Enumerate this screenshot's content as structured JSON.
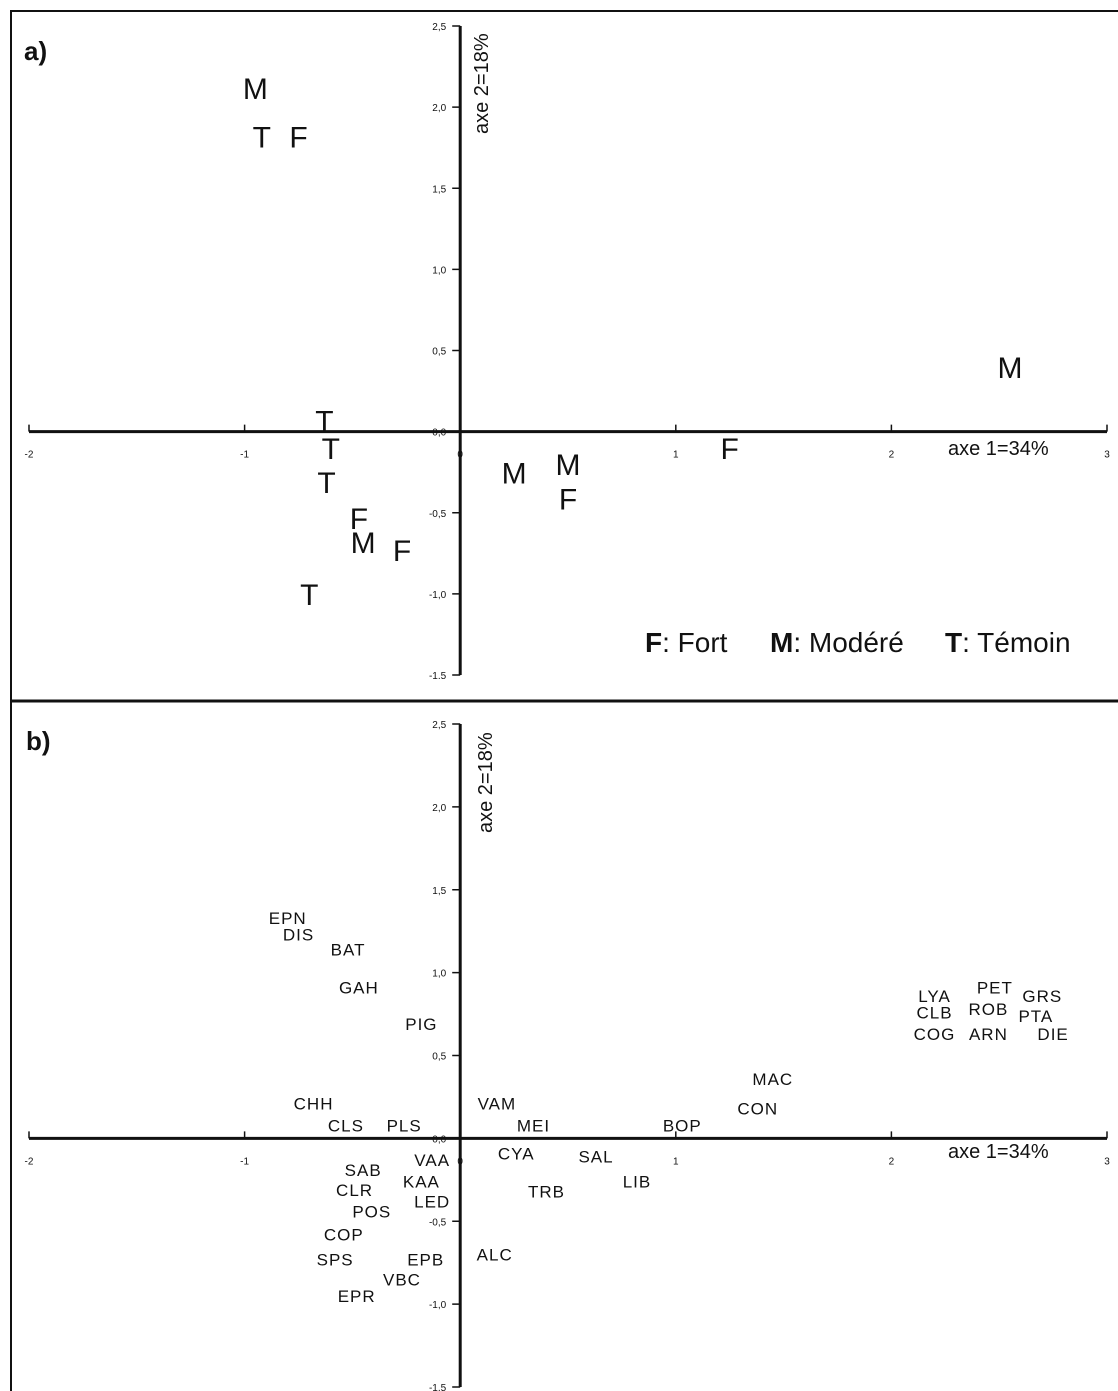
{
  "chart_data": [
    {
      "panel": "a)",
      "type": "scatter",
      "xlabel": "axe 1=34%",
      "ylabel": "axe 2=18%",
      "xlim": [
        -2,
        3
      ],
      "ylim": [
        -1.5,
        2.5
      ],
      "x_ticks": [
        "-2",
        "-1",
        "0",
        "1",
        "2",
        "3"
      ],
      "y_ticks": [
        "2,5",
        "2,0",
        "1,5",
        "1,0",
        "0,5",
        "0,0",
        "-0,5",
        "-1,0",
        "-1.5"
      ],
      "points": [
        {
          "label": "M",
          "x": -0.95,
          "y": 2.1
        },
        {
          "label": "T",
          "x": -0.92,
          "y": 1.8
        },
        {
          "label": "F",
          "x": -0.75,
          "y": 1.8
        },
        {
          "label": "M",
          "x": 2.55,
          "y": 0.38
        },
        {
          "label": "T",
          "x": -0.63,
          "y": 0.05
        },
        {
          "label": "T",
          "x": -0.6,
          "y": -0.12
        },
        {
          "label": "T",
          "x": -0.62,
          "y": -0.33
        },
        {
          "label": "F",
          "x": 1.25,
          "y": -0.12
        },
        {
          "label": "M",
          "x": 0.5,
          "y": -0.22
        },
        {
          "label": "M",
          "x": 0.25,
          "y": -0.27
        },
        {
          "label": "F",
          "x": 0.5,
          "y": -0.43
        },
        {
          "label": "F",
          "x": -0.47,
          "y": -0.55
        },
        {
          "label": "M",
          "x": -0.45,
          "y": -0.7
        },
        {
          "label": "F",
          "x": -0.27,
          "y": -0.75
        },
        {
          "label": "T",
          "x": -0.7,
          "y": -1.02
        }
      ],
      "legend": [
        {
          "key": "F",
          "text": ": Fort"
        },
        {
          "key": "M",
          "text": ": Modéré"
        },
        {
          "key": "T",
          "text": ": Témoin"
        }
      ]
    },
    {
      "panel": "b)",
      "type": "scatter",
      "xlabel": "axe 1=34%",
      "ylabel": "axe 2=18%",
      "xlim": [
        -2,
        3
      ],
      "ylim": [
        -1.5,
        2.5
      ],
      "x_ticks": [
        "-2",
        "-1",
        "0",
        "1",
        "2",
        "3"
      ],
      "y_ticks": [
        "2,5",
        "2,0",
        "1,5",
        "1,0",
        "0,5",
        "0,0",
        "-0,5",
        "-1,0",
        "-1,5"
      ],
      "points": [
        {
          "label": "EPN",
          "x": -0.8,
          "y": 1.32
        },
        {
          "label": "DIS",
          "x": -0.75,
          "y": 1.22
        },
        {
          "label": "BAT",
          "x": -0.52,
          "y": 1.13
        },
        {
          "label": "GAH",
          "x": -0.47,
          "y": 0.9
        },
        {
          "label": "PIG",
          "x": -0.18,
          "y": 0.68
        },
        {
          "label": "LYA",
          "x": 2.2,
          "y": 0.85
        },
        {
          "label": "PET",
          "x": 2.48,
          "y": 0.9
        },
        {
          "label": "GRS",
          "x": 2.7,
          "y": 0.85
        },
        {
          "label": "CLB",
          "x": 2.2,
          "y": 0.75
        },
        {
          "label": "ROB",
          "x": 2.45,
          "y": 0.77
        },
        {
          "label": "PTA",
          "x": 2.67,
          "y": 0.73
        },
        {
          "label": "COG",
          "x": 2.2,
          "y": 0.62
        },
        {
          "label": "ARN",
          "x": 2.45,
          "y": 0.62
        },
        {
          "label": "DIE",
          "x": 2.75,
          "y": 0.62
        },
        {
          "label": "MAC",
          "x": 1.45,
          "y": 0.35
        },
        {
          "label": "CON",
          "x": 1.38,
          "y": 0.17
        },
        {
          "label": "CHH",
          "x": -0.68,
          "y": 0.2
        },
        {
          "label": "VAM",
          "x": 0.17,
          "y": 0.2
        },
        {
          "label": "CLS",
          "x": -0.53,
          "y": 0.07
        },
        {
          "label": "PLS",
          "x": -0.26,
          "y": 0.07
        },
        {
          "label": "MEI",
          "x": 0.34,
          "y": 0.07
        },
        {
          "label": "BOP",
          "x": 1.03,
          "y": 0.07
        },
        {
          "label": "CYA",
          "x": 0.26,
          "y": -0.1
        },
        {
          "label": "SAL",
          "x": 0.63,
          "y": -0.12
        },
        {
          "label": "VAA",
          "x": -0.13,
          "y": -0.14
        },
        {
          "label": "SAB",
          "x": -0.45,
          "y": -0.2
        },
        {
          "label": "LIB",
          "x": 0.82,
          "y": -0.27
        },
        {
          "label": "KAA",
          "x": -0.18,
          "y": -0.27
        },
        {
          "label": "CLR",
          "x": -0.49,
          "y": -0.32
        },
        {
          "label": "TRB",
          "x": 0.4,
          "y": -0.33
        },
        {
          "label": "LED",
          "x": -0.13,
          "y": -0.39
        },
        {
          "label": "POS",
          "x": -0.41,
          "y": -0.45
        },
        {
          "label": "COP",
          "x": -0.54,
          "y": -0.59
        },
        {
          "label": "ALC",
          "x": 0.16,
          "y": -0.71
        },
        {
          "label": "SPS",
          "x": -0.58,
          "y": -0.74
        },
        {
          "label": "EPB",
          "x": -0.16,
          "y": -0.74
        },
        {
          "label": "VBC",
          "x": -0.27,
          "y": -0.86
        },
        {
          "label": "EPR",
          "x": -0.48,
          "y": -0.96
        }
      ]
    }
  ]
}
